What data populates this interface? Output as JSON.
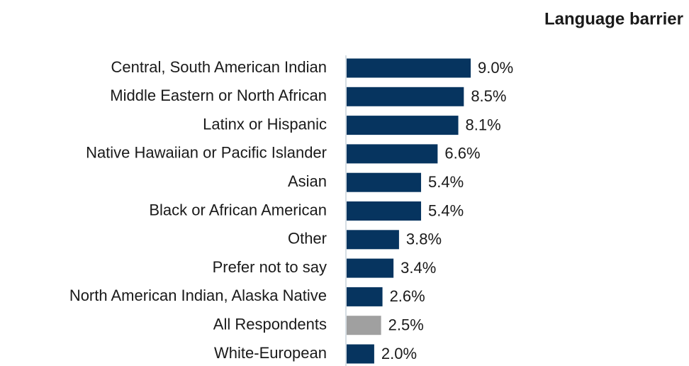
{
  "chart_data": {
    "type": "barh",
    "title": "Language barrier",
    "categories": [
      "Central, South American Indian",
      "Middle Eastern or North African",
      "Latinx or Hispanic",
      "Native Hawaiian or Pacific Islander",
      "Asian",
      "Black or African American",
      "Other",
      "Prefer not to say",
      "North American Indian, Alaska Native",
      "All Respondents",
      "White-European"
    ],
    "values": [
      9.0,
      8.5,
      8.1,
      6.6,
      5.4,
      5.4,
      3.8,
      3.4,
      2.6,
      2.5,
      2.0
    ],
    "value_labels": [
      "9.0%",
      "8.5%",
      "8.1%",
      "6.6%",
      "5.4%",
      "5.4%",
      "3.8%",
      "3.4%",
      "2.6%",
      "2.5%",
      "2.0%"
    ],
    "colors": [
      "#06345f",
      "#06345f",
      "#06345f",
      "#06345f",
      "#06345f",
      "#06345f",
      "#06345f",
      "#06345f",
      "#06345f",
      "#a0a0a0",
      "#06345f"
    ]
  }
}
